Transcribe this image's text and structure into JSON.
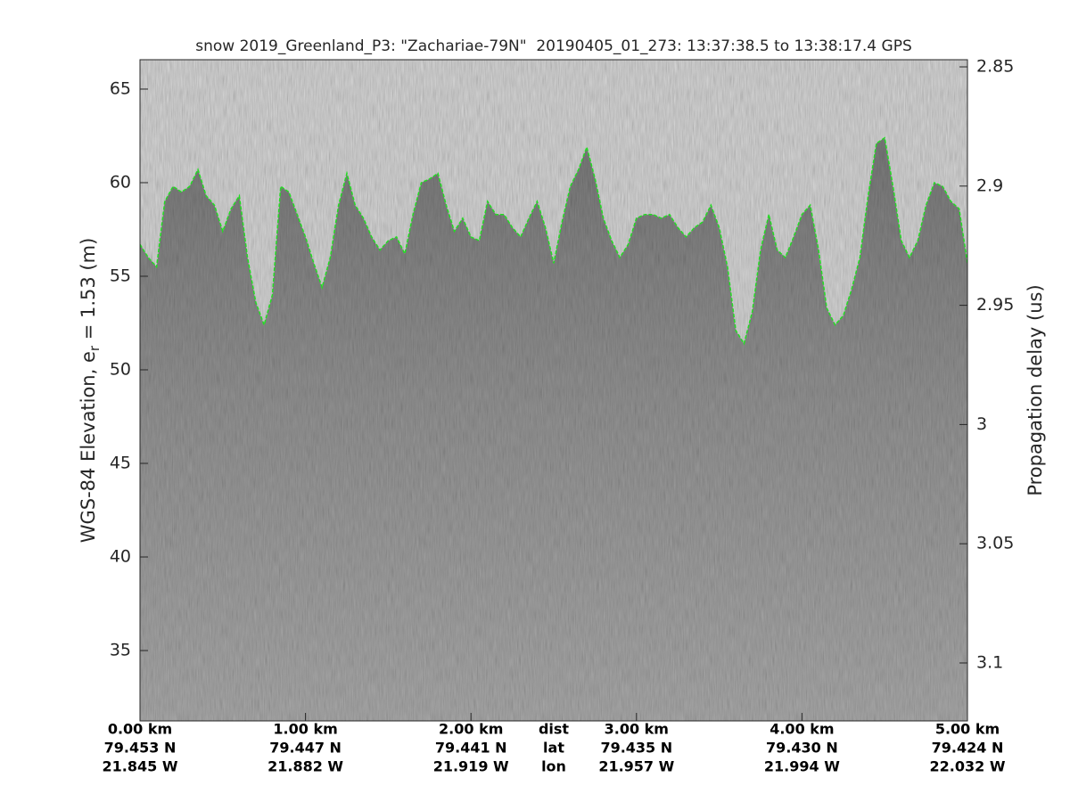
{
  "chart_data": {
    "type": "line",
    "title": "snow 2019_Greenland_P3: \"Zachariae-79N\"  20190405_01_273: 13:37:38.5 to 13:38:17.4 GPS",
    "ylabel": {
      "text": "WGS-84 Elevation, e",
      "subscript": "r",
      "suffix": " = 1.53 (m)"
    },
    "y2label": "Propagation delay (us)",
    "x": [
      0,
      0.05,
      0.1,
      0.15,
      0.2,
      0.25,
      0.3,
      0.35,
      0.4,
      0.45,
      0.5,
      0.55,
      0.6,
      0.65,
      0.7,
      0.75,
      0.8,
      0.85,
      0.9,
      0.95,
      1,
      1.05,
      1.1,
      1.15,
      1.2,
      1.25,
      1.3,
      1.35,
      1.4,
      1.45,
      1.5,
      1.55,
      1.6,
      1.65,
      1.7,
      1.75,
      1.8,
      1.85,
      1.9,
      1.95,
      2,
      2.05,
      2.1,
      2.15,
      2.2,
      2.25,
      2.3,
      2.35,
      2.4,
      2.45,
      2.5,
      2.55,
      2.6,
      2.65,
      2.7,
      2.75,
      2.8,
      2.85,
      2.9,
      2.95,
      3,
      3.05,
      3.1,
      3.15,
      3.2,
      3.25,
      3.3,
      3.35,
      3.4,
      3.45,
      3.5,
      3.55,
      3.6,
      3.65,
      3.7,
      3.75,
      3.8,
      3.85,
      3.9,
      3.95,
      4,
      4.05,
      4.1,
      4.15,
      4.2,
      4.25,
      4.3,
      4.35,
      4.4,
      4.45,
      4.5,
      4.55,
      4.6,
      4.65,
      4.7,
      4.75,
      4.8,
      4.85,
      4.9,
      4.95,
      5
    ],
    "series": [
      {
        "color": "#22dd22",
        "values": [
          56.7,
          56.0,
          55.5,
          59.0,
          59.8,
          59.5,
          59.8,
          60.7,
          59.3,
          58.8,
          57.4,
          58.6,
          59.3,
          56.0,
          53.6,
          52.4,
          54.0,
          59.8,
          59.5,
          58.3,
          57.1,
          55.7,
          54.4,
          56.0,
          58.8,
          60.5,
          58.8,
          58.1,
          57.1,
          56.4,
          56.9,
          57.1,
          56.2,
          58.3,
          60.0,
          60.2,
          60.5,
          58.8,
          57.4,
          58.1,
          57.1,
          56.9,
          59.0,
          58.3,
          58.3,
          57.6,
          57.1,
          58.1,
          59.0,
          57.6,
          55.7,
          57.9,
          59.8,
          60.7,
          61.9,
          60.2,
          58.1,
          56.9,
          56.0,
          56.7,
          58.1,
          58.3,
          58.3,
          58.1,
          58.3,
          57.6,
          57.1,
          57.6,
          57.9,
          58.8,
          57.6,
          55.5,
          52.1,
          51.4,
          53.1,
          56.4,
          58.3,
          56.4,
          56.0,
          57.1,
          58.3,
          58.8,
          56.4,
          53.3,
          52.4,
          52.9,
          54.3,
          56.0,
          59.3,
          62.1,
          62.4,
          59.8,
          56.9,
          56.0,
          56.9,
          58.8,
          60.0,
          59.8,
          59.0,
          58.6,
          55.7
        ]
      }
    ],
    "xlim": [
      0,
      5
    ],
    "ylim": [
      31.24,
      66.57
    ],
    "yticks": [
      35,
      40,
      45,
      50,
      55,
      60,
      65
    ],
    "y2lim": [
      3.1243,
      2.847
    ],
    "y2ticks": [
      2.85,
      2.9,
      2.95,
      3,
      3.05,
      3.1
    ],
    "xticks": [
      {
        "value": 0,
        "label": "0.00 km"
      },
      {
        "value": 1,
        "label": "1.00 km"
      },
      {
        "value": 2,
        "label": "2.00 km"
      },
      {
        "value": 3,
        "label": "3.00 km"
      },
      {
        "value": 4,
        "label": "4.00 km"
      },
      {
        "value": 5,
        "label": "5.00 km"
      }
    ],
    "lat_labels": [
      "79.453 N",
      "79.447 N",
      "79.441 N",
      "79.435 N",
      "79.430 N",
      "79.424 N"
    ],
    "lon_labels": [
      "21.845 W",
      "21.882 W",
      "21.919 W",
      "21.957 W",
      "21.994 W",
      "22.032 W"
    ],
    "row_labels": [
      "dist",
      "lat",
      "lon"
    ],
    "row_label_x": 2.5
  }
}
